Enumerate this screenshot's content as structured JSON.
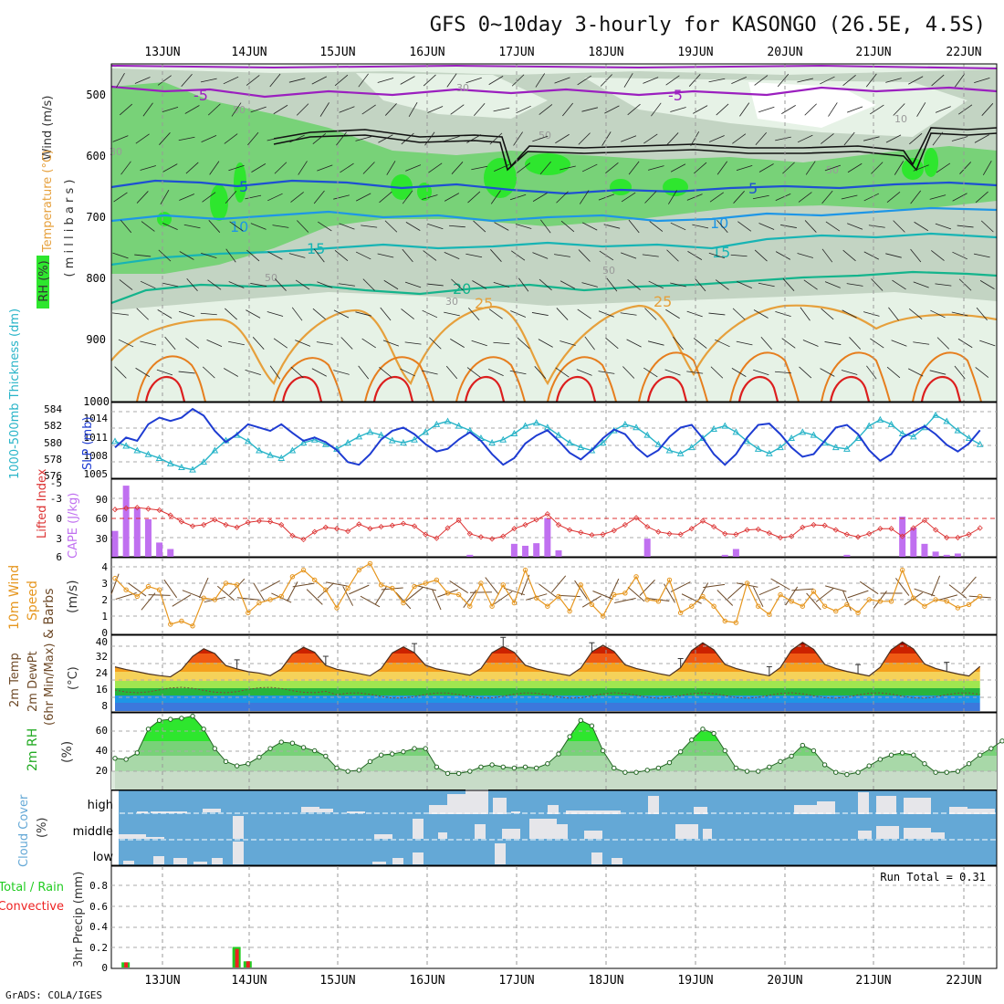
{
  "title": "GFS 0~10day 3-hourly for KASONGO (26.5E, 4.5S)",
  "footer": "GrADS: COLA/IGES",
  "dates": [
    "13JUN",
    "14JUN",
    "15JUN",
    "16JUN",
    "17JUN",
    "18JUN",
    "19JUN",
    "20JUN",
    "21JUN",
    "22JUN"
  ],
  "colors": {
    "rh_light": "#e6f2e6",
    "rh_mid": "#c3d4c3",
    "rh_green": "#78d278",
    "rh_bright": "#2ee62e",
    "wind": "#9b1fbf",
    "temp_blue": "#1e50d2",
    "temp_lightblue": "#1e96e6",
    "temp_cyan": "#17b4b4",
    "temp_teal": "#14b48c",
    "temp_yellow": "#e6a03c",
    "temp_orange": "#e67e1e",
    "temp_red": "#dc1e1e",
    "slp": "#1e3cd2",
    "thickness": "#28b4c8",
    "lifted": "#dc3232",
    "cape": "#c070f0",
    "wind10": "#e6961e",
    "barb": "#6e4a28",
    "rh2": "#22aa22",
    "cloud": "#64a8d6",
    "cloud_gap": "#eeeeee",
    "precip_total": "#22cc22",
    "precip_conv": "#ee2222"
  },
  "panels": {
    "upper": {
      "ylabel_wind": "Wind (m/s)",
      "ylabel_temp": "Temperature (°C)",
      "ylabel_rh": "RH (%)",
      "ylabel_units": "( m i l l i b a r s )",
      "yticks": [
        "500",
        "600",
        "700",
        "800",
        "900",
        "1000"
      ],
      "isotherm_labels": [
        "-5",
        "-5",
        "5",
        "5",
        "10",
        "10",
        "15",
        "15",
        "20",
        "25",
        "25"
      ],
      "rh_labels": [
        "30",
        "50",
        "10",
        "30",
        "50",
        "50",
        "50",
        "50",
        "30"
      ]
    },
    "slp": {
      "ylabel_left": "1000-500mb Thickness (dm)",
      "ylabel_right": "SLP (mb)",
      "yticks_left": [
        "584",
        "582",
        "580",
        "578",
        "576"
      ],
      "yticks_right": [
        "1014",
        "1011",
        "1008",
        "1005"
      ]
    },
    "cape": {
      "ylabel_left": "Lifted Index",
      "ylabel_right": "CAPE (J/kg)",
      "yticks_left": [
        "-5",
        "-3",
        "0",
        "3",
        "6"
      ],
      "yticks_right": [
        "90",
        "60",
        "30"
      ]
    },
    "wind10": {
      "ylabel_1": "10m Wind",
      "ylabel_2": "Speed",
      "ylabel_3": "& Barbs",
      "ylabel_units": "(m/s)",
      "yticks": [
        "4",
        "3",
        "2",
        "1",
        "0"
      ]
    },
    "temp2m": {
      "ylabel_1": "2m Temp",
      "ylabel_2": "2m DewPt",
      "ylabel_3": "(6hr Min/Max)",
      "ylabel_units": "(°C)",
      "yticks": [
        "40",
        "32",
        "24",
        "16",
        "8"
      ]
    },
    "rh2m": {
      "ylabel": "2m RH",
      "ylabel_units": "(%)",
      "yticks": [
        "60",
        "40",
        "20"
      ]
    },
    "cloud": {
      "ylabel": "Cloud Cover",
      "ylabel_units": "(%)",
      "levels": [
        "high",
        "middle",
        "low"
      ]
    },
    "precip": {
      "ylabel_1": "Total / Rain",
      "ylabel_2": "Convective",
      "ylabel_units": "3hr Precip (mm)",
      "yticks": [
        "0.8",
        "0.6",
        "0.4",
        "0.2",
        "0"
      ],
      "run_total": "Run Total = 0.31"
    }
  },
  "chart_data": [
    {
      "type": "line",
      "name": "1000-500mb Thickness",
      "x": [
        "12JUN12",
        "12JUN15",
        "12JUN18",
        "12JUN21",
        "13JUN00",
        "13JUN03",
        "13JUN06",
        "13JUN09",
        "13JUN12",
        "13JUN15",
        "13JUN18",
        "13JUN21",
        "14JUN00",
        "14JUN03",
        "14JUN06",
        "14JUN09",
        "14JUN12",
        "14JUN15",
        "14JUN18",
        "14JUN21",
        "15JUN00",
        "15JUN03",
        "15JUN06",
        "15JUN09",
        "15JUN12",
        "15JUN15",
        "15JUN18",
        "15JUN21",
        "16JUN00",
        "16JUN03",
        "16JUN06",
        "16JUN09",
        "16JUN12",
        "16JUN15",
        "16JUN18",
        "16JUN21",
        "17JUN00",
        "17JUN03",
        "17JUN06",
        "17JUN09",
        "17JUN12",
        "17JUN15",
        "17JUN18",
        "17JUN21",
        "18JUN00",
        "18JUN03",
        "18JUN06",
        "18JUN09",
        "18JUN12",
        "18JUN15",
        "18JUN18",
        "18JUN21",
        "19JUN00",
        "19JUN03",
        "19JUN06",
        "19JUN09",
        "19JUN12",
        "19JUN15",
        "19JUN18",
        "19JUN21",
        "20JUN00",
        "20JUN03",
        "20JUN06",
        "20JUN09",
        "20JUN12",
        "20JUN15",
        "20JUN18",
        "20JUN21",
        "21JUN00",
        "21JUN03",
        "21JUN06",
        "21JUN09",
        "21JUN12",
        "21JUN15",
        "21JUN18",
        "21JUN21",
        "22JUN00",
        "22JUN03",
        "22JUN06"
      ],
      "series": [
        {
          "name": "Thickness (dm)",
          "values": [
            580.2,
            579.6,
            579.0,
            578.5,
            578.0,
            577.3,
            576.8,
            576.5,
            577.5,
            579.0,
            580.3,
            581.0,
            580.2,
            579.0,
            578.4,
            578.0,
            579.0,
            580.0,
            580.4,
            579.8,
            579.2,
            580.0,
            580.8,
            581.4,
            581.0,
            580.3,
            580.0,
            580.4,
            581.4,
            582.4,
            582.8,
            582.2,
            581.6,
            580.6,
            580.0,
            580.4,
            581.2,
            582.2,
            582.6,
            582.0,
            581.0,
            580.0,
            579.4,
            579.0,
            580.0,
            581.6,
            582.4,
            582.0,
            581.0,
            579.8,
            579.0,
            578.6,
            579.4,
            580.6,
            581.8,
            582.2,
            581.4,
            580.2,
            579.2,
            578.6,
            579.4,
            580.6,
            581.4,
            581.0,
            580.0,
            579.4,
            579.2,
            580.6,
            582.2,
            583.0,
            582.4,
            581.2,
            580.8,
            582.0,
            583.6,
            582.8,
            581.6,
            580.6,
            579.8
          ]
        },
        {
          "name": "SLP (mb)",
          "values": [
            1009.0,
            1010.5,
            1010.0,
            1012.5,
            1013.5,
            1013.0,
            1013.5,
            1014.8,
            1013.8,
            1011.5,
            1009.8,
            1011.0,
            1012.5,
            1012.0,
            1011.5,
            1012.5,
            1011.2,
            1010.0,
            1010.5,
            1009.8,
            1008.6,
            1006.8,
            1006.4,
            1008.0,
            1010.2,
            1011.5,
            1012.0,
            1011.0,
            1009.5,
            1008.4,
            1008.8,
            1010.2,
            1011.3,
            1010.0,
            1008.0,
            1006.4,
            1007.4,
            1009.6,
            1010.8,
            1011.6,
            1010.0,
            1008.2,
            1007.2,
            1008.6,
            1010.4,
            1011.7,
            1011.0,
            1009.0,
            1007.6,
            1008.6,
            1010.6,
            1012.0,
            1012.4,
            1010.4,
            1008.0,
            1006.4,
            1008.0,
            1010.5,
            1012.4,
            1012.6,
            1011.0,
            1009.0,
            1007.6,
            1008.0,
            1010.0,
            1012.0,
            1012.4,
            1011.0,
            1008.6,
            1007.0,
            1008.0,
            1010.5,
            1011.4,
            1012.2,
            1011.0,
            1009.4,
            1008.4,
            1009.6,
            1011.6
          ]
        }
      ]
    },
    {
      "type": "bar",
      "name": "CAPE (J/kg)",
      "x": [
        "12JUN12",
        "12JUN15",
        "12JUN18",
        "12JUN21",
        "13JUN00",
        "13JUN03",
        "16JUN12",
        "17JUN00",
        "17JUN03",
        "17JUN06",
        "17JUN09",
        "17JUN12",
        "18JUN12",
        "19JUN09",
        "19JUN12",
        "20JUN18",
        "21JUN09",
        "21JUN12",
        "21JUN15",
        "21JUN18",
        "21JUN21",
        "22JUN00"
      ],
      "values": [
        40,
        110,
        75,
        58,
        22,
        12,
        3,
        20,
        17,
        21,
        60,
        10,
        28,
        3,
        12,
        3,
        62,
        45,
        20,
        8,
        3,
        5
      ]
    },
    {
      "type": "line",
      "name": "Lifted Index",
      "values": [
        -1.4,
        -1.6,
        -1.7,
        -1.5,
        -1.3,
        -0.5,
        0.5,
        1.2,
        1.0,
        0.2,
        1.0,
        1.4,
        0.6,
        0.4,
        0.5,
        1.0,
        2.7,
        3.3,
        2.1,
        1.4,
        1.6,
        2.0,
        0.9,
        1.6,
        1.3,
        1.1,
        0.8,
        1.2,
        2.5,
        3.1,
        1.5,
        0.3,
        2.4,
        2.9,
        3.2,
        2.8,
        1.6,
        1.0,
        0.2,
        -0.7,
        1.0,
        1.8,
        2.2,
        2.6,
        2.5,
        1.9,
        1.0,
        -0.1,
        1.3,
        2.1,
        2.4,
        2.5,
        1.6,
        0.4,
        1.3,
        2.4,
        2.5,
        1.8,
        1.7,
        2.3,
        3.0,
        2.8,
        1.4,
        1.0,
        1.1,
        1.8,
        2.5,
        2.9,
        2.4,
        1.6,
        1.6,
        2.8,
        1.5,
        0.3,
        1.8,
        3.0,
        3.0,
        2.5,
        1.5
      ]
    },
    {
      "type": "line",
      "name": "10m Wind Speed (m/s)",
      "values": [
        3.3,
        2.6,
        2.2,
        2.8,
        2.6,
        0.5,
        0.7,
        0.4,
        2.1,
        2.0,
        3.0,
        2.9,
        1.2,
        1.8,
        2.0,
        2.2,
        3.4,
        3.8,
        3.2,
        2.6,
        1.5,
        2.7,
        3.8,
        4.2,
        2.9,
        2.7,
        1.8,
        2.8,
        3.0,
        3.2,
        2.4,
        2.3,
        1.6,
        3.0,
        1.6,
        2.9,
        1.8,
        3.8,
        2.1,
        1.6,
        2.2,
        1.3,
        2.9,
        1.7,
        1.0,
        2.3,
        2.4,
        3.4,
        2.0,
        1.9,
        3.2,
        1.2,
        1.6,
        2.2,
        1.6,
        0.7,
        0.6,
        3.0,
        1.6,
        1.1,
        2.3,
        1.9,
        1.6,
        2.5,
        1.6,
        1.3,
        1.7,
        1.2,
        2.0,
        1.9,
        1.9,
        3.8,
        2.1,
        1.6,
        2.0,
        1.9,
        1.5,
        1.7,
        2.2
      ]
    },
    {
      "type": "area",
      "name": "2m Temperature (°C)",
      "values": [
        26.8,
        25.5,
        24.5,
        23.4,
        22.6,
        22.0,
        25.5,
        31.8,
        35.5,
        33.2,
        27.4,
        25.8,
        24.5,
        23.8,
        22.6,
        25.8,
        33.0,
        36.2,
        33.8,
        27.5,
        25.6,
        24.6,
        23.6,
        22.5,
        26.0,
        33.5,
        36.4,
        33.6,
        27.6,
        25.8,
        24.8,
        23.8,
        22.8,
        26.0,
        33.6,
        36.6,
        33.8,
        27.6,
        25.8,
        24.6,
        23.6,
        22.6,
        26.2,
        34.0,
        37.2,
        34.2,
        27.8,
        26.0,
        24.8,
        23.6,
        22.6,
        26.4,
        34.6,
        38.4,
        35.0,
        28.0,
        26.0,
        24.6,
        23.5,
        22.5,
        26.5,
        34.8,
        38.6,
        35.2,
        28.0,
        26.0,
        24.6,
        23.5,
        22.4,
        26.6,
        35.0,
        38.8,
        35.4,
        28.2,
        26.0,
        24.6,
        23.4,
        22.4,
        27.0
      ]
    },
    {
      "type": "line",
      "name": "2m RH (%)",
      "values": [
        33,
        32,
        38,
        60,
        68,
        69,
        70,
        72,
        60,
        42,
        30,
        26,
        28,
        34,
        42,
        48,
        47,
        43,
        40,
        35,
        24,
        21,
        22,
        30,
        36,
        37,
        39,
        42,
        42,
        25,
        19,
        19,
        21,
        25,
        27,
        25,
        24,
        25,
        24,
        28,
        37,
        53,
        68,
        63,
        40,
        24,
        20,
        20,
        22,
        24,
        29,
        39,
        50,
        60,
        56,
        40,
        24,
        21,
        21,
        25,
        30,
        35,
        45,
        40,
        27,
        20,
        18,
        20,
        26,
        32,
        36,
        38,
        36,
        28,
        20,
        20,
        21,
        28,
        36,
        42,
        49,
        43
      ]
    },
    {
      "type": "bar",
      "name": "3hr Precip (mm)",
      "x": [
        "12JUN15",
        "13JUN21",
        "14JUN00"
      ],
      "series": [
        {
          "name": "Total / Rain",
          "values": [
            0.05,
            0.2,
            0.06
          ]
        },
        {
          "name": "Convective",
          "values": [
            0.05,
            0.18,
            0.06
          ]
        }
      ]
    }
  ]
}
